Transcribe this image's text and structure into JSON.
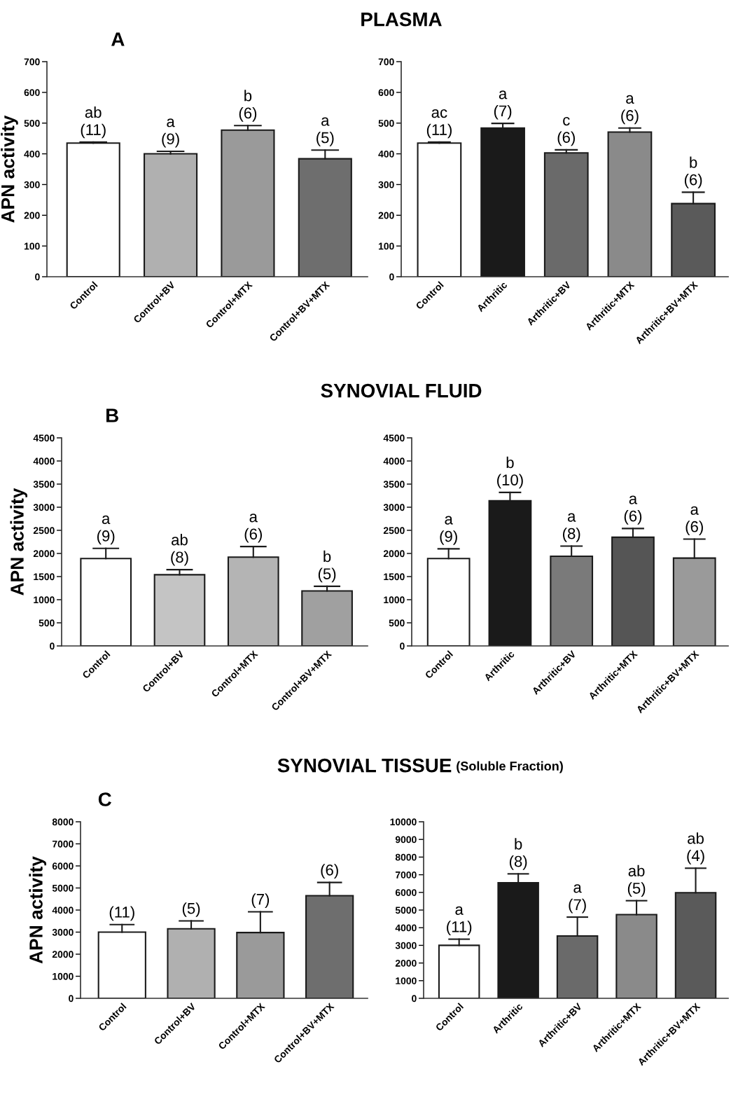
{
  "chart_data": [
    {
      "type": "bar",
      "ylabel": "APN activity",
      "categories": [
        "Control",
        "Control+BV",
        "Control+MTX",
        "Control+BV+MTX"
      ],
      "values": [
        435,
        400,
        477,
        384
      ],
      "errors": [
        [
          435,
          438
        ],
        [
          400,
          408
        ],
        [
          477,
          492
        ],
        [
          384,
          412
        ]
      ],
      "colors": [
        "#ffffff",
        "#b0b0b0",
        "#9a9a9a",
        "#6e6e6e"
      ],
      "ylim": [
        0,
        700
      ],
      "yticks": [
        0,
        100,
        200,
        300,
        400,
        500,
        600,
        700
      ],
      "grid": false,
      "legend": false,
      "annotations": [
        "ab\n(11)",
        "a\n(9)",
        "b\n(6)",
        "a\n(5)",
        "A"
      ]
    },
    {
      "type": "bar",
      "title": "PLASMA",
      "categories": [
        "Control",
        "Arthritic",
        "Arthritic+BV",
        "Arthritic+MTX",
        "Arthritic+BV+MTX"
      ],
      "values": [
        435,
        484,
        403,
        471,
        238
      ],
      "errors": [
        [
          435,
          438
        ],
        [
          484,
          499
        ],
        [
          403,
          413
        ],
        [
          471,
          484
        ],
        [
          238,
          275
        ]
      ],
      "colors": [
        "#ffffff",
        "#1a1a1a",
        "#6a6a6a",
        "#8a8a8a",
        "#5a5a5a"
      ],
      "ylim": [
        0,
        700
      ],
      "yticks": [
        0,
        100,
        200,
        300,
        400,
        500,
        600,
        700
      ],
      "grid": false,
      "legend": false,
      "annotations": [
        "ac\n(11)",
        "a\n(7)",
        "c\n(6)",
        "a\n(6)",
        "b\n(6)"
      ]
    },
    {
      "type": "bar",
      "ylabel": "APN activity",
      "categories": [
        "Control",
        "Control+BV",
        "Control+MTX",
        "Control+BV+MTX"
      ],
      "values": [
        1890,
        1540,
        1920,
        1190
      ],
      "errors": [
        [
          1890,
          2110
        ],
        [
          1540,
          1650
        ],
        [
          1920,
          2150
        ],
        [
          1190,
          1290
        ]
      ],
      "colors": [
        "#ffffff",
        "#c4c4c4",
        "#b4b4b4",
        "#a0a0a0"
      ],
      "ylim": [
        0,
        4500
      ],
      "yticks": [
        0,
        500,
        1000,
        1500,
        2000,
        2500,
        3000,
        3500,
        4000,
        4500
      ],
      "grid": false,
      "legend": false,
      "annotations": [
        "a\n(9)",
        "ab\n(8)",
        "a\n(6)",
        "b\n(5)",
        "B"
      ]
    },
    {
      "type": "bar",
      "title": "SYNOVIAL FLUID",
      "categories": [
        "Control",
        "Arthritic",
        "Arthritic+BV",
        "Arthritic+MTX",
        "Arthritic+BV+MTX"
      ],
      "values": [
        1890,
        3140,
        1940,
        2350,
        1900
      ],
      "errors": [
        [
          1890,
          2100
        ],
        [
          3140,
          3320
        ],
        [
          1940,
          2160
        ],
        [
          2350,
          2540
        ],
        [
          1900,
          2310
        ]
      ],
      "colors": [
        "#ffffff",
        "#1a1a1a",
        "#7a7a7a",
        "#555555",
        "#9a9a9a"
      ],
      "ylim": [
        0,
        4500
      ],
      "yticks": [
        0,
        500,
        1000,
        1500,
        2000,
        2500,
        3000,
        3500,
        4000,
        4500
      ],
      "grid": false,
      "legend": false,
      "annotations": [
        "a\n(9)",
        "b\n(10)",
        "a\n(8)",
        "a\n(6)",
        "a\n(6)"
      ]
    },
    {
      "type": "bar",
      "title": "SYNOVIAL TISSUE",
      "ylabel": "APN activity",
      "categories": [
        "Control",
        "Control+BV",
        "Control+MTX",
        "Control+BV+MTX"
      ],
      "values": [
        3000,
        3150,
        2980,
        4650
      ],
      "errors": [
        [
          3000,
          3340
        ],
        [
          3150,
          3510
        ],
        [
          2980,
          3920
        ],
        [
          4650,
          5250
        ]
      ],
      "colors": [
        "#ffffff",
        "#b0b0b0",
        "#9a9a9a",
        "#6e6e6e"
      ],
      "ylim": [
        0,
        8000
      ],
      "yticks": [
        0,
        1000,
        2000,
        3000,
        4000,
        5000,
        6000,
        7000,
        8000
      ],
      "grid": false,
      "legend": false,
      "annotations": [
        "(11)",
        "(5)",
        "(7)",
        "(6)",
        "C"
      ]
    },
    {
      "type": "bar",
      "subtitle": "(Soluble Fraction)",
      "categories": [
        "Control",
        "Arthritic",
        "Arthritic+BV",
        "Arthritic+MTX",
        "Arthritic+BV+MTX"
      ],
      "values": [
        3000,
        6550,
        3530,
        4740,
        5980
      ],
      "errors": [
        [
          3000,
          3350
        ],
        [
          6550,
          7050
        ],
        [
          3530,
          4600
        ],
        [
          4740,
          5530
        ],
        [
          5980,
          7370
        ]
      ],
      "colors": [
        "#ffffff",
        "#1a1a1a",
        "#6a6a6a",
        "#8a8a8a",
        "#5a5a5a"
      ],
      "ylim": [
        0,
        10000
      ],
      "yticks": [
        0,
        1000,
        2000,
        3000,
        4000,
        5000,
        6000,
        7000,
        8000,
        9000,
        10000
      ],
      "grid": false,
      "legend": false,
      "annotations": [
        "a\n(11)",
        "b\n(8)",
        "a\n(7)",
        "ab\n(5)",
        "ab\n(4)"
      ]
    }
  ]
}
